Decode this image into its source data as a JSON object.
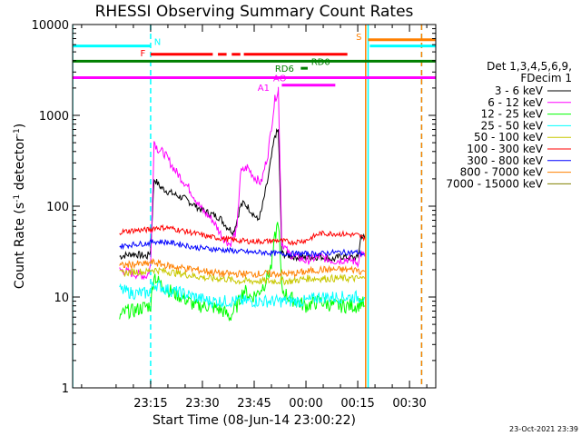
{
  "chart_data": {
    "type": "line",
    "title": "RHESSI Observing Summary Count Rates",
    "xlabel": "Start Time (08-Jun-14 23:00:22)",
    "ylabel_main": "Count Rate (s",
    "ylabel_exp1": "-1",
    "ylabel_mid": " detector",
    "ylabel_exp2": "-1",
    "ylabel_end": ")",
    "yscale": "log",
    "ylim": [
      1,
      10000
    ],
    "xlim_min": [
      -7.6,
      97.6
    ],
    "y_ticks": [
      {
        "value": 1,
        "label": "1"
      },
      {
        "value": 10,
        "label": "10"
      },
      {
        "value": 100,
        "label": "100"
      },
      {
        "value": 1000,
        "label": "1000"
      },
      {
        "value": 10000,
        "label": "10000"
      }
    ],
    "x_ticks": [
      {
        "value": 15,
        "label": "23:15"
      },
      {
        "value": 30,
        "label": "23:30"
      },
      {
        "value": 45,
        "label": "23:45"
      },
      {
        "value": 60,
        "label": "00:00"
      },
      {
        "value": 75,
        "label": "00:15"
      },
      {
        "value": 90,
        "label": "00:30"
      }
    ],
    "legend_title_1": "Det 1,3,4,5,6,9,",
    "legend_title_2": "FDecim 1",
    "series": [
      {
        "name": "3 - 6 keV",
        "color": "#000000",
        "points": [
          [
            6,
            28
          ],
          [
            10,
            30
          ],
          [
            14,
            28
          ],
          [
            15,
            32
          ],
          [
            16,
            200
          ],
          [
            18,
            160
          ],
          [
            20,
            145
          ],
          [
            25,
            120
          ],
          [
            30,
            90
          ],
          [
            35,
            75
          ],
          [
            37,
            60
          ],
          [
            39,
            52
          ],
          [
            40,
            70
          ],
          [
            41,
            100
          ],
          [
            42,
            108
          ],
          [
            43,
            100
          ],
          [
            45,
            80
          ],
          [
            46,
            70
          ],
          [
            47,
            85
          ],
          [
            49,
            200
          ],
          [
            51,
            600
          ],
          [
            52,
            680
          ],
          [
            52,
            700
          ],
          [
            53,
            30
          ],
          [
            56,
            28
          ],
          [
            60,
            27
          ],
          [
            64,
            28
          ],
          [
            68,
            26
          ],
          [
            70,
            28
          ],
          [
            74,
            27
          ],
          [
            75,
            27
          ],
          [
            76,
            48
          ],
          [
            77,
            45
          ]
        ]
      },
      {
        "name": "6 - 12 keV",
        "color": "#ff00ff",
        "points": [
          [
            6,
            20
          ],
          [
            10,
            18
          ],
          [
            14,
            17
          ],
          [
            15,
            22
          ],
          [
            16,
            520
          ],
          [
            17,
            430
          ],
          [
            19,
            380
          ],
          [
            22,
            250
          ],
          [
            26,
            160
          ],
          [
            30,
            90
          ],
          [
            33,
            70
          ],
          [
            36,
            45
          ],
          [
            38,
            38
          ],
          [
            40,
            55
          ],
          [
            41,
            230
          ],
          [
            43,
            270
          ],
          [
            45,
            210
          ],
          [
            47,
            180
          ],
          [
            49,
            380
          ],
          [
            51,
            1500
          ],
          [
            52,
            1900
          ],
          [
            52,
            2000
          ],
          [
            53,
            40
          ],
          [
            55,
            30
          ],
          [
            57,
            28
          ],
          [
            60,
            25
          ],
          [
            64,
            28
          ],
          [
            68,
            25
          ],
          [
            72,
            26
          ],
          [
            75,
            24
          ],
          [
            76,
            30
          ],
          [
            77,
            28
          ]
        ]
      },
      {
        "name": "12 - 25 keV",
        "color": "#00ff00",
        "points": [
          [
            6,
            6
          ],
          [
            8,
            7
          ],
          [
            10,
            7
          ],
          [
            14,
            8
          ],
          [
            15,
            8
          ],
          [
            16,
            18
          ],
          [
            17,
            15
          ],
          [
            20,
            12
          ],
          [
            24,
            10
          ],
          [
            28,
            8
          ],
          [
            32,
            8
          ],
          [
            36,
            7
          ],
          [
            38,
            6
          ],
          [
            40,
            8
          ],
          [
            42,
            12
          ],
          [
            44,
            10
          ],
          [
            46,
            11
          ],
          [
            48,
            14
          ],
          [
            50,
            22
          ],
          [
            51,
            45
          ],
          [
            52,
            70
          ],
          [
            53,
            12
          ],
          [
            55,
            10
          ],
          [
            57,
            9
          ],
          [
            60,
            8
          ],
          [
            64,
            9
          ],
          [
            68,
            8
          ],
          [
            72,
            8
          ],
          [
            75,
            8
          ],
          [
            76,
            9
          ],
          [
            77,
            8
          ]
        ]
      },
      {
        "name": "25 - 50 keV",
        "color": "#00ffff",
        "points": [
          [
            6,
            12
          ],
          [
            10,
            11
          ],
          [
            14,
            11
          ],
          [
            15,
            12
          ],
          [
            16,
            14
          ],
          [
            18,
            13
          ],
          [
            20,
            12
          ],
          [
            24,
            11
          ],
          [
            28,
            10
          ],
          [
            32,
            9
          ],
          [
            36,
            9
          ],
          [
            40,
            9
          ],
          [
            44,
            9
          ],
          [
            48,
            9
          ],
          [
            52,
            9
          ],
          [
            56,
            9
          ],
          [
            60,
            9
          ],
          [
            64,
            10
          ],
          [
            68,
            10
          ],
          [
            72,
            10
          ],
          [
            75,
            10
          ],
          [
            76,
            10
          ],
          [
            77,
            10
          ]
        ]
      },
      {
        "name": "50 - 100 keV",
        "color": "#c8c800",
        "points": [
          [
            6,
            18
          ],
          [
            10,
            19
          ],
          [
            14,
            19
          ],
          [
            15,
            20
          ],
          [
            16,
            20
          ],
          [
            20,
            19
          ],
          [
            24,
            18
          ],
          [
            28,
            17
          ],
          [
            32,
            16
          ],
          [
            36,
            16
          ],
          [
            40,
            15
          ],
          [
            44,
            15
          ],
          [
            48,
            15
          ],
          [
            52,
            15
          ],
          [
            56,
            15
          ],
          [
            60,
            16
          ],
          [
            64,
            16
          ],
          [
            68,
            16
          ],
          [
            72,
            16
          ],
          [
            75,
            16
          ],
          [
            76,
            16
          ],
          [
            77,
            16
          ]
        ]
      },
      {
        "name": "100 - 300 keV",
        "color": "#ff0000",
        "points": [
          [
            6,
            52
          ],
          [
            10,
            54
          ],
          [
            14,
            55
          ],
          [
            15,
            55
          ],
          [
            16,
            58
          ],
          [
            20,
            58
          ],
          [
            24,
            54
          ],
          [
            28,
            50
          ],
          [
            32,
            46
          ],
          [
            36,
            44
          ],
          [
            40,
            42
          ],
          [
            44,
            41
          ],
          [
            48,
            41
          ],
          [
            52,
            42
          ],
          [
            56,
            40
          ],
          [
            60,
            42
          ],
          [
            64,
            50
          ],
          [
            68,
            50
          ],
          [
            72,
            49
          ],
          [
            75,
            48
          ],
          [
            76,
            46
          ],
          [
            77,
            45
          ]
        ]
      },
      {
        "name": "300 - 800 keV",
        "color": "#0000ff",
        "points": [
          [
            6,
            36
          ],
          [
            10,
            38
          ],
          [
            14,
            39
          ],
          [
            15,
            40
          ],
          [
            16,
            41
          ],
          [
            20,
            40
          ],
          [
            24,
            38
          ],
          [
            28,
            35
          ],
          [
            32,
            34
          ],
          [
            36,
            33
          ],
          [
            40,
            32
          ],
          [
            44,
            31
          ],
          [
            48,
            31
          ],
          [
            52,
            30
          ],
          [
            56,
            30
          ],
          [
            60,
            30
          ],
          [
            64,
            30
          ],
          [
            68,
            31
          ],
          [
            72,
            31
          ],
          [
            75,
            31
          ],
          [
            76,
            30
          ],
          [
            77,
            30
          ]
        ]
      },
      {
        "name": "800 - 7000 keV",
        "color": "#ff8000",
        "points": [
          [
            6,
            22
          ],
          [
            10,
            23
          ],
          [
            14,
            23
          ],
          [
            15,
            24
          ],
          [
            16,
            24
          ],
          [
            20,
            22
          ],
          [
            24,
            21
          ],
          [
            28,
            20
          ],
          [
            32,
            19
          ],
          [
            36,
            18
          ],
          [
            40,
            18
          ],
          [
            44,
            18
          ],
          [
            48,
            18
          ],
          [
            52,
            18
          ],
          [
            56,
            18
          ],
          [
            60,
            19
          ],
          [
            64,
            20
          ],
          [
            68,
            20
          ],
          [
            72,
            20
          ],
          [
            75,
            20
          ],
          [
            76,
            19
          ],
          [
            77,
            19
          ]
        ]
      },
      {
        "name": "7000 - 15000 keV",
        "color": "#808000",
        "points": []
      }
    ],
    "flag_bars": [
      {
        "label": "N",
        "color": "#00ffff",
        "y": 5800,
        "segments": [
          [
            -7.6,
            15
          ]
        ],
        "label_x": 16,
        "label_y": 6500,
        "label_color": "#00ffff"
      },
      {
        "label": "N",
        "color": "#00ffff",
        "y": 5800,
        "segments": [
          [
            78.5,
            97.6
          ]
        ],
        "label_x": null,
        "label_y": null,
        "label_color": "#00ffff"
      },
      {
        "label": "S",
        "color": "#ff8000",
        "y": 6800,
        "segments": [
          [
            78,
            97.6
          ]
        ],
        "label_x": 74.5,
        "label_y": 7400,
        "label_color": "#ff8000"
      },
      {
        "label": "F",
        "color": "#ff0000",
        "y": 4700,
        "segments": [
          [
            15,
            33
          ],
          [
            34.5,
            37
          ],
          [
            38.5,
            41
          ],
          [
            42,
            72
          ]
        ],
        "label_x": 12,
        "label_y": 4900,
        "label_color": "#ff0000"
      },
      {
        "label": "",
        "color": "#008000",
        "y": 3950,
        "segments": [
          [
            -7.6,
            97.6
          ]
        ],
        "label_x": null,
        "label_y": null,
        "label_color": "#008000"
      },
      {
        "label": "RD0",
        "color": "#008000",
        "y": 3950,
        "segments": [],
        "label_x": 61.5,
        "label_y": 3950,
        "label_color": "#008000"
      },
      {
        "label": "RD6",
        "color": "#008000",
        "y": 3300,
        "segments": [
          [
            58.5,
            60.5
          ]
        ],
        "label_x": 51,
        "label_y": 3300,
        "label_color": "#008000"
      },
      {
        "label": "AO",
        "color": "#ff00ff",
        "y": 2600,
        "segments": [
          [
            -7.6,
            97.6
          ]
        ],
        "label_x": 50.5,
        "label_y": 2600,
        "label_color": "#ff00ff"
      },
      {
        "label": "A1",
        "color": "#ff00ff",
        "y": 2150,
        "segments": [
          [
            53,
            68.5
          ]
        ],
        "label_x": 46,
        "label_y": 2050,
        "label_color": "#ff00ff"
      }
    ],
    "vlines": [
      {
        "x": -7.6,
        "color": "#00ffff",
        "style": "solid"
      },
      {
        "x": 15,
        "color": "#00ffff",
        "style": "dashed"
      },
      {
        "x": 77.3,
        "color": "#ff8000",
        "style": "solid"
      },
      {
        "x": 78,
        "color": "#00ffff",
        "style": "solid"
      },
      {
        "x": 93.5,
        "color": "#00ffff",
        "style": "dashed"
      },
      {
        "x": 93.5,
        "color": "#ff8000",
        "style": "dashed"
      }
    ],
    "timestamp": "23-Oct-2021 23:39"
  }
}
